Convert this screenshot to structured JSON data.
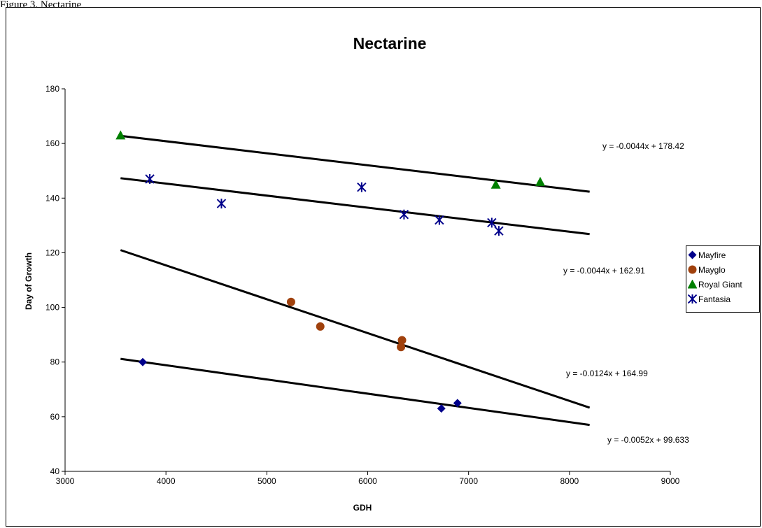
{
  "caption": "Figure 3. Nectarine",
  "chart_data": {
    "type": "scatter",
    "title": "Nectarine",
    "xlabel": "GDH",
    "ylabel": "Day of Growth",
    "xlim": [
      3000,
      9000
    ],
    "ylim": [
      40,
      180
    ],
    "x_ticks": [
      3000,
      4000,
      5000,
      6000,
      7000,
      8000,
      9000
    ],
    "y_ticks": [
      40,
      60,
      80,
      100,
      120,
      140,
      160,
      180
    ],
    "grid": false,
    "legend_position": "right",
    "series": [
      {
        "name": "Mayfire",
        "color": "#00008B",
        "marker": "diamond",
        "points": [
          [
            3770,
            80
          ],
          [
            6730,
            63
          ],
          [
            6890,
            65
          ]
        ]
      },
      {
        "name": "Mayglo",
        "color": "#A0410D",
        "marker": "circle",
        "points": [
          [
            5240,
            102
          ],
          [
            5530,
            93
          ],
          [
            6330,
            85.5
          ],
          [
            6340,
            88
          ]
        ]
      },
      {
        "name": "Royal Giant",
        "color": "#008000",
        "marker": "triangle",
        "points": [
          [
            3550,
            163
          ],
          [
            7270,
            145
          ],
          [
            7710,
            146
          ]
        ]
      },
      {
        "name": "Fantasia",
        "color": "#00008B",
        "marker": "asterisk",
        "points": [
          [
            3840,
            147
          ],
          [
            4550,
            138
          ],
          [
            5940,
            144
          ],
          [
            6360,
            134
          ],
          [
            6710,
            132
          ],
          [
            7230,
            131
          ],
          [
            7300,
            128
          ]
        ]
      }
    ],
    "trendlines": [
      {
        "series": "Royal Giant",
        "slope": -0.0044,
        "intercept": 178.42,
        "x_range": [
          3550,
          8200
        ],
        "label": "y = -0.0044x + 178.42"
      },
      {
        "series": "Fantasia",
        "slope": -0.0044,
        "intercept": 162.91,
        "x_range": [
          3550,
          8200
        ],
        "label": "y = -0.0044x + 162.91"
      },
      {
        "series": "Mayglo",
        "slope": -0.0124,
        "intercept": 164.99,
        "x_range": [
          3550,
          8200
        ],
        "label": "y = -0.0124x + 164.99"
      },
      {
        "series": "Mayfire",
        "slope": -0.0052,
        "intercept": 99.633,
        "x_range": [
          3550,
          8200
        ],
        "label": "y = -0.0052x + 99.633"
      }
    ]
  }
}
